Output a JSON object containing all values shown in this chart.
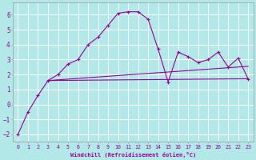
{
  "xlabel": "Windchill (Refroidissement éolien,°C)",
  "bg_color": "#b2e8e8",
  "grid_color": "#ffffff",
  "line_color": "#990099",
  "xlim": [
    -0.5,
    23.5
  ],
  "ylim": [
    -2.5,
    6.8
  ],
  "xticks": [
    0,
    1,
    2,
    3,
    4,
    5,
    6,
    7,
    8,
    9,
    10,
    11,
    12,
    13,
    14,
    15,
    16,
    17,
    18,
    19,
    20,
    21,
    22,
    23
  ],
  "yticks": [
    -2,
    -1,
    0,
    1,
    2,
    3,
    4,
    5,
    6
  ],
  "series1_x": [
    0,
    1,
    2,
    3,
    4,
    5,
    6,
    7,
    8,
    9,
    10,
    11,
    12,
    13,
    14,
    15,
    16,
    17,
    18,
    19,
    20,
    21,
    22,
    23
  ],
  "series1_y": [
    -2.0,
    -0.5,
    0.6,
    1.6,
    2.0,
    2.7,
    3.0,
    4.0,
    4.5,
    5.3,
    6.1,
    6.2,
    6.2,
    5.7,
    3.7,
    1.5,
    3.5,
    3.2,
    2.8,
    3.0,
    3.5,
    2.5,
    3.1,
    1.7
  ],
  "series2_x": [
    3,
    23
  ],
  "series2_y": [
    1.6,
    2.55
  ],
  "series3_x": [
    3,
    23
  ],
  "series3_y": [
    1.6,
    1.72
  ]
}
